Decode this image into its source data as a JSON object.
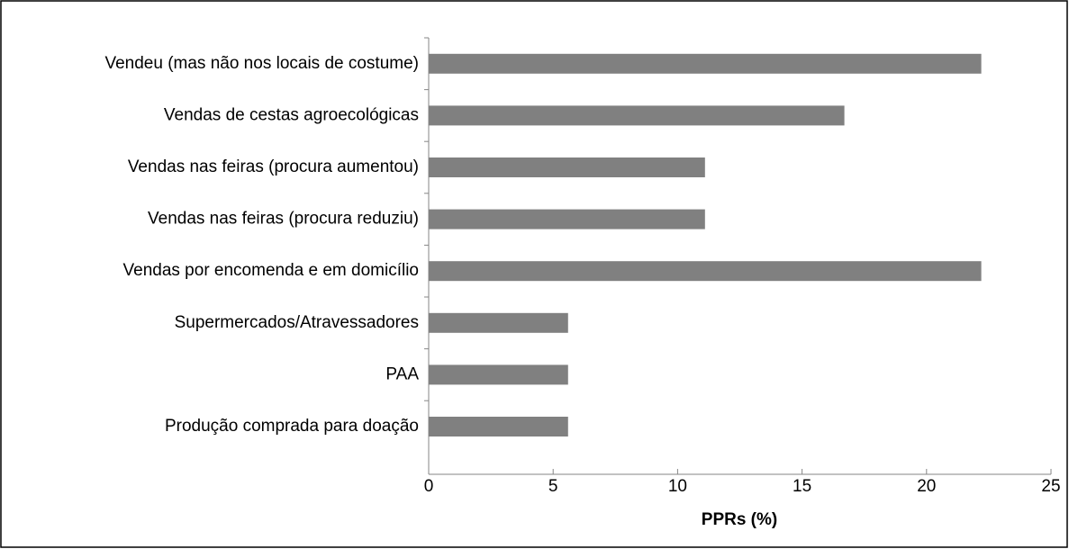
{
  "chart_data": {
    "type": "bar",
    "orientation": "horizontal",
    "x_label": "PPRs (%)",
    "categories": [
      "Vendeu (mas não nos locais de costume)",
      "Vendas de cestas agroecológicas",
      "Vendas nas feiras (procura aumentou)",
      "Vendas nas feiras (procura reduziu)",
      "Vendas por encomenda e em domicílio",
      "Supermercados/Atravessadores",
      "PAA",
      "Produção comprada para doação"
    ],
    "values": [
      22.2,
      16.7,
      11.1,
      11.1,
      22.2,
      5.6,
      5.6,
      5.6
    ],
    "color": "#808080",
    "xlim": [
      0,
      25
    ],
    "xticks": [
      0,
      5,
      10,
      15,
      20,
      25
    ],
    "grid": false
  }
}
